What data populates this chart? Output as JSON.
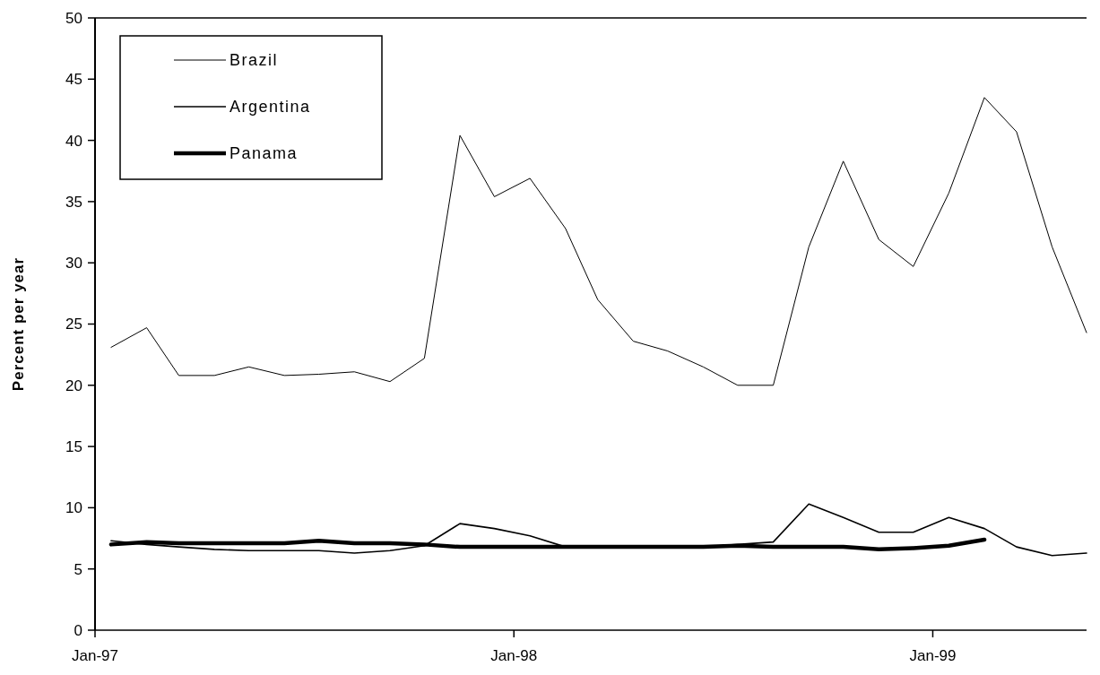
{
  "chart_data": {
    "type": "line",
    "ylabel": "Percent per year",
    "x": [
      "1997-01-15",
      "1997-02-15",
      "1997-03-15",
      "1997-04-15",
      "1997-05-15",
      "1997-06-15",
      "1997-07-15",
      "1997-08-15",
      "1997-09-15",
      "1997-10-15",
      "1997-11-15",
      "1997-12-15",
      "1998-01-15",
      "1998-02-15",
      "1998-03-15",
      "1998-04-15",
      "1998-05-15",
      "1998-06-15",
      "1998-07-15",
      "1998-08-15",
      "1998-09-15",
      "1998-10-15",
      "1998-11-15",
      "1998-12-15",
      "1999-01-15",
      "1999-02-15",
      "1999-03-15",
      "1999-04-15",
      "1999-05-15"
    ],
    "series": [
      {
        "name": "Brazil",
        "color": "#000000",
        "values": [
          23.1,
          24.7,
          20.8,
          20.8,
          21.5,
          20.8,
          20.9,
          21.1,
          20.3,
          22.2,
          40.4,
          35.4,
          36.9,
          32.8,
          27.0,
          23.6,
          22.8,
          21.5,
          20.0,
          20.0,
          31.3,
          38.3,
          31.9,
          29.7,
          35.7,
          43.5,
          40.7,
          31.3,
          24.3
        ]
      },
      {
        "name": "Argentina",
        "color": "#000000",
        "values": [
          7.3,
          7.0,
          6.8,
          6.6,
          6.5,
          6.5,
          6.5,
          6.3,
          6.5,
          6.9,
          8.7,
          8.3,
          7.7,
          6.8,
          6.8,
          6.8,
          6.8,
          6.8,
          7.0,
          7.2,
          10.3,
          9.2,
          8.0,
          8.0,
          9.2,
          8.3,
          6.8,
          6.1,
          6.3
        ]
      },
      {
        "name": "Panama",
        "color": "#000000",
        "values": [
          7.0,
          7.2,
          7.1,
          7.1,
          7.1,
          7.1,
          7.3,
          7.1,
          7.1,
          7.0,
          6.8,
          6.8,
          6.8,
          6.8,
          6.8,
          6.8,
          6.8,
          6.8,
          6.9,
          6.8,
          6.8,
          6.8,
          6.6,
          6.7,
          6.9,
          7.4,
          null,
          null,
          null
        ]
      }
    ],
    "xlim": [
      "1997-01-01",
      "1999-05-15"
    ],
    "xticks": [
      {
        "value": "1997-01-01",
        "label": "Jan-97"
      },
      {
        "value": "1998-01-01",
        "label": "Jan-98"
      },
      {
        "value": "1999-01-01",
        "label": "Jan-99"
      }
    ],
    "ylim": [
      0,
      50
    ],
    "yticks": [
      0,
      5,
      10,
      15,
      20,
      25,
      30,
      35,
      40,
      45,
      50
    ],
    "grid": false,
    "legend": "top left",
    "marker": "none",
    "line_style": "solid"
  }
}
